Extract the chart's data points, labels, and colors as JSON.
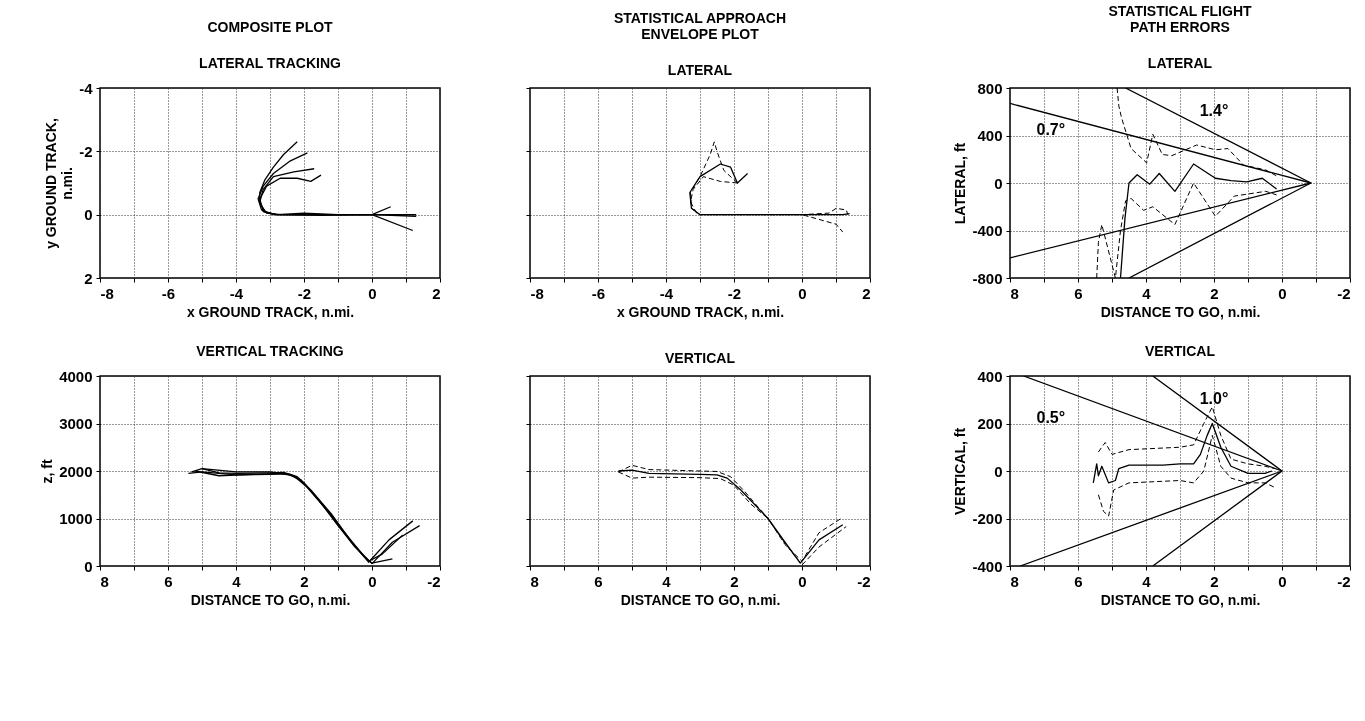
{
  "chart_data": [
    {
      "type": "line",
      "title": "COMPOSITE PLOT",
      "subtitle": "LATERAL TRACKING",
      "xlabel": "x GROUND TRACK, n.mi.",
      "ylabel": "y GROUND TRACK, n.mi.",
      "xlim": [
        -8,
        2
      ],
      "ylim": [
        2,
        -4
      ],
      "xticks": [
        -8,
        {
          "value": -7,
          "label": null
        },
        -6,
        {
          "value": -5,
          "label": null
        },
        -4,
        {
          "value": -3,
          "label": null
        },
        -2,
        {
          "value": -1,
          "label": null
        },
        0,
        {
          "value": 1,
          "label": null
        },
        2
      ],
      "yticks": [
        -4,
        -2,
        0,
        2
      ],
      "grid": true,
      "series": [
        {
          "color": "#000000",
          "x": [
            -2.2,
            -2.6,
            -2.9,
            -3.15,
            -3.3,
            -3.3,
            -3.1,
            -2.7,
            -1,
            0,
            1.3
          ],
          "values": [
            -2.3,
            -1.9,
            -1.5,
            -1.1,
            -0.7,
            -0.35,
            -0.05,
            0,
            0,
            0,
            0.05
          ]
        },
        {
          "color": "#000000",
          "x": [
            -1.9,
            -2.4,
            -2.9,
            -3.2,
            -3.35,
            -3.25,
            -2.9,
            -1.5,
            0,
            1.2
          ],
          "values": [
            -1.95,
            -1.7,
            -1.3,
            -0.9,
            -0.5,
            -0.15,
            0,
            0.02,
            0,
            0.5
          ]
        },
        {
          "color": "#000000",
          "x": [
            -1.5,
            -1.8,
            -2.2,
            -2.7,
            -3.1,
            -3.3,
            -3.2,
            -2.8,
            -2,
            -1,
            0,
            0.55
          ],
          "values": [
            -1.25,
            -1.05,
            -1.15,
            -1.15,
            -0.9,
            -0.5,
            -0.1,
            0,
            -0.05,
            0,
            0,
            -0.25
          ]
        },
        {
          "color": "#000000",
          "x": [
            -1.7,
            -2.3,
            -2.9,
            -3.2,
            -3.3,
            -3.15,
            -2.8,
            0,
            1.3
          ],
          "values": [
            -1.45,
            -1.35,
            -1.2,
            -0.8,
            -0.4,
            -0.08,
            0,
            0,
            0
          ]
        }
      ]
    },
    {
      "type": "line",
      "title": "STATISTICAL APPROACH ENVELOPE PLOT",
      "subtitle": "LATERAL",
      "xlabel": "x GROUND TRACK, n.mi.",
      "xlim": [
        -8,
        2
      ],
      "ylim": [
        2,
        -4
      ],
      "xticks": [
        -8,
        {
          "value": -7,
          "label": null
        },
        -6,
        {
          "value": -5,
          "label": null
        },
        -4,
        {
          "value": -3,
          "label": null
        },
        -2,
        {
          "value": -1,
          "label": null
        },
        0,
        {
          "value": 1,
          "label": null
        },
        2
      ],
      "yticks": [
        -4,
        -2,
        0,
        2
      ],
      "grid": true,
      "tick_labels": "x",
      "series": [
        {
          "color": "#000000",
          "line_style": "solid",
          "x": [
            -1.6,
            -1.9,
            -2.1,
            -2.4,
            -3,
            -3.3,
            -3.25,
            -3,
            0,
            1.2,
            1.4
          ],
          "values": [
            -1.3,
            -1,
            -1.5,
            -1.6,
            -1.2,
            -0.7,
            -0.2,
            0,
            0,
            0,
            -0.03
          ]
        },
        {
          "color": "#000000",
          "line_style": "dashed",
          "x": [
            -1.9,
            -2.3,
            -2.5,
            -2.58,
            -2.7,
            -3,
            -3.28,
            -3.25,
            -3,
            0,
            0.8,
            1,
            1.3,
            1.35
          ],
          "values": [
            -1,
            -1.4,
            -2,
            -2.3,
            -1.9,
            -1.2,
            -0.7,
            -0.2,
            0,
            0,
            -0.05,
            -0.2,
            -0.15,
            0
          ]
        },
        {
          "color": "#000000",
          "line_style": "dashed",
          "x": [
            -1.9,
            -2.4,
            -2.9,
            -3.2,
            -3.28,
            -3.1,
            -3,
            0,
            1,
            1.2
          ],
          "values": [
            -1,
            -1.05,
            -1.2,
            -0.8,
            -0.4,
            -0.05,
            0,
            0,
            0.3,
            0.55
          ]
        }
      ]
    },
    {
      "type": "line",
      "title": "STATISTICAL FLIGHT PATH ERRORS",
      "subtitle": "LATERAL",
      "xlabel": "DISTANCE TO GO, n.mi.",
      "ylabel": "LATERAL, ft",
      "xlim": [
        8,
        -2
      ],
      "ylim": [
        -800,
        800
      ],
      "xticks": [
        8,
        {
          "value": 7,
          "label": null
        },
        6,
        {
          "value": 5,
          "label": null
        },
        4,
        {
          "value": 3,
          "label": null
        },
        2,
        {
          "value": 1,
          "label": null
        },
        0,
        {
          "value": -1,
          "label": null
        },
        -2
      ],
      "yticks": [
        -800,
        -400,
        0,
        400,
        800
      ],
      "grid": true,
      "annotations": [
        "0.7°",
        "1.4°"
      ],
      "series": [
        {
          "color": "#000000",
          "line_style": "solid",
          "x": [
            8,
            -0.85,
            8
          ],
          "values": [
            670,
            0,
            -630
          ]
        },
        {
          "color": "#000000",
          "line_style": "solid",
          "x": [
            4.6,
            -0.85,
            4.5
          ],
          "values": [
            800,
            0,
            -800
          ]
        },
        {
          "color": "#000000",
          "line_style": "solid",
          "x": [
            4.75,
            4.62,
            4.5,
            4.26,
            3.89,
            3.61,
            3.15,
            2.6,
            1.96,
            1.5,
            1.04,
            0.58,
            0.16
          ],
          "values": [
            -800,
            -300,
            0,
            70,
            -10,
            80,
            -70,
            160,
            40,
            20,
            10,
            40,
            -50
          ]
        },
        {
          "color": "#000000",
          "line_style": "dashed",
          "x": [
            4.85,
            4.8,
            4.72,
            4.44,
            3.98,
            3.8,
            3.52,
            3.24,
            2.51,
            1.96,
            1.59,
            1.13,
            0.48,
            0.16
          ],
          "values": [
            800,
            650,
            550,
            290,
            170,
            410,
            240,
            230,
            320,
            280,
            290,
            150,
            110,
            60
          ]
        },
        {
          "color": "#000000",
          "line_style": "dashed",
          "x": [
            5.45,
            5.4,
            5.3,
            4.9,
            4.75,
            4.6,
            4.44,
            4.07,
            3.8,
            3.15,
            2.6,
            1.96,
            1.4,
            0.94,
            0.48,
            0.16
          ],
          "values": [
            -800,
            -500,
            -350,
            -800,
            -400,
            -150,
            -130,
            -230,
            -200,
            -350,
            0,
            -280,
            -110,
            -90,
            -70,
            -100
          ]
        }
      ]
    },
    {
      "type": "line",
      "title": "VERTICAL TRACKING",
      "xlabel": "DISTANCE TO GO, n.mi.",
      "ylabel": "z, ft",
      "xlim": [
        8,
        -2
      ],
      "ylim": [
        0,
        4000
      ],
      "xticks": [
        8,
        {
          "value": 7,
          "label": null
        },
        6,
        {
          "value": 5,
          "label": null
        },
        4,
        {
          "value": 3,
          "label": null
        },
        2,
        {
          "value": 1,
          "label": null
        },
        0,
        {
          "value": -1,
          "label": null
        },
        -2
      ],
      "yticks": [
        0,
        1000,
        2000,
        3000,
        4000
      ],
      "grid": true,
      "series": [
        {
          "color": "#000000",
          "x": [
            5.3,
            5,
            4.5,
            4,
            3,
            2.6,
            2.2,
            1.8,
            1.2,
            0.6,
            0.1,
            -0.5,
            -1.2
          ],
          "values": [
            1980,
            2050,
            1960,
            1950,
            1960,
            1970,
            1880,
            1600,
            1100,
            500,
            80,
            550,
            950
          ]
        },
        {
          "color": "#000000",
          "x": [
            5.4,
            5,
            4,
            3,
            2.5,
            2.1,
            1.6,
            1,
            0.5,
            0,
            -0.6,
            -1.4
          ],
          "values": [
            1950,
            1980,
            1920,
            1930,
            1940,
            1820,
            1420,
            850,
            400,
            50,
            500,
            850
          ]
        },
        {
          "color": "#000000",
          "x": [
            5.2,
            4.5,
            3.5,
            2.7,
            2.3,
            1.9,
            1.3,
            0.7,
            0.1,
            -0.3,
            -0.9
          ],
          "values": [
            2000,
            1900,
            1930,
            1950,
            1900,
            1650,
            1150,
            600,
            100,
            250,
            650
          ]
        },
        {
          "color": "#000000",
          "x": [
            5,
            4,
            3,
            2.4,
            2,
            1.4,
            0.8,
            0.3,
            0,
            -0.6
          ],
          "values": [
            2050,
            1980,
            1980,
            1930,
            1750,
            1250,
            700,
            250,
            60,
            150
          ]
        }
      ]
    },
    {
      "type": "line",
      "title": "VERTICAL",
      "xlabel": "DISTANCE TO GO, n.mi.",
      "xlim": [
        8,
        -2
      ],
      "ylim": [
        0,
        4000
      ],
      "xticks": [
        8,
        {
          "value": 7,
          "label": null
        },
        6,
        {
          "value": 5,
          "label": null
        },
        4,
        {
          "value": 3,
          "label": null
        },
        2,
        {
          "value": 1,
          "label": null
        },
        0,
        {
          "value": -1,
          "label": null
        },
        -2
      ],
      "yticks": [
        0,
        1000,
        2000,
        3000,
        4000
      ],
      "grid": true,
      "tick_labels": "x",
      "series": [
        {
          "color": "#000000",
          "line_style": "solid",
          "x": [
            5.4,
            5,
            4.5,
            3,
            2.5,
            2.2,
            1.8,
            1,
            0.5,
            0.05,
            -0.5,
            -1.2
          ],
          "values": [
            2000,
            2020,
            1950,
            1930,
            1920,
            1850,
            1600,
            1000,
            500,
            60,
            550,
            870
          ]
        },
        {
          "color": "#000000",
          "line_style": "dashed",
          "x": [
            5.4,
            5,
            4.5,
            3,
            2.5,
            2.1,
            1.7,
            1,
            0.5,
            0,
            -0.5,
            -1.17
          ],
          "values": [
            1980,
            2120,
            2030,
            2000,
            1990,
            1880,
            1580,
            1000,
            450,
            100,
            700,
            1010
          ]
        },
        {
          "color": "#000000",
          "line_style": "dashed",
          "x": [
            5.4,
            5,
            4.5,
            3,
            2.4,
            2,
            1.5,
            1,
            0.5,
            0,
            -0.5,
            -1.3
          ],
          "values": [
            1980,
            1850,
            1870,
            1860,
            1840,
            1700,
            1300,
            1000,
            480,
            20,
            400,
            830
          ]
        }
      ]
    },
    {
      "type": "line",
      "subtitle": "VERTICAL",
      "xlabel": "DISTANCE TO GO, n.mi.",
      "ylabel": "VERTICAL, ft",
      "xlim": [
        8,
        -2
      ],
      "ylim": [
        -400,
        400
      ],
      "xticks": [
        8,
        {
          "value": 7,
          "label": null
        },
        6,
        {
          "value": 5,
          "label": null
        },
        4,
        {
          "value": 3,
          "label": null
        },
        2,
        {
          "value": 1,
          "label": null
        },
        0,
        {
          "value": -1,
          "label": null
        },
        -2
      ],
      "yticks": [
        -400,
        -200,
        0,
        200,
        400
      ],
      "grid": true,
      "annotations": [
        "0.5°",
        "1.0°"
      ],
      "series": [
        {
          "color": "#000000",
          "line_style": "solid",
          "x": [
            7.6,
            0,
            7.7
          ],
          "values": [
            400,
            0,
            -400
          ]
        },
        {
          "color": "#000000",
          "line_style": "solid",
          "x": [
            3.8,
            0,
            3.8
          ],
          "values": [
            400,
            0,
            -400
          ]
        },
        {
          "color": "#000000",
          "line_style": "solid",
          "x": [
            5.55,
            5.45,
            5.4,
            5.3,
            5.1,
            4.9,
            4.8,
            4.5,
            3.5,
            3,
            2.6,
            2.4,
            2.2,
            2.05,
            1.8,
            1.5,
            1,
            0.5,
            0.3
          ],
          "values": [
            -50,
            30,
            -20,
            20,
            -50,
            -40,
            10,
            25,
            25,
            30,
            30,
            70,
            150,
            200,
            100,
            20,
            -10,
            -10,
            0
          ]
        },
        {
          "color": "#000000",
          "line_style": "dashed",
          "x": [
            5.4,
            5.2,
            5,
            4.5,
            3,
            2.6,
            2.3,
            2.05,
            1.8,
            1.5,
            1,
            0.5,
            0.2
          ],
          "values": [
            80,
            120,
            70,
            90,
            100,
            110,
            200,
            270,
            150,
            50,
            30,
            20,
            10
          ]
        },
        {
          "color": "#000000",
          "line_style": "dashed",
          "x": [
            5.4,
            5.25,
            5.1,
            4.95,
            4.5,
            3,
            2.6,
            2.3,
            2.05,
            1.8,
            1.5,
            1,
            0.5,
            0.2
          ],
          "values": [
            -100,
            -170,
            -190,
            -80,
            -50,
            -40,
            -50,
            0,
            150,
            20,
            -30,
            -50,
            -50,
            -70
          ]
        }
      ]
    }
  ]
}
